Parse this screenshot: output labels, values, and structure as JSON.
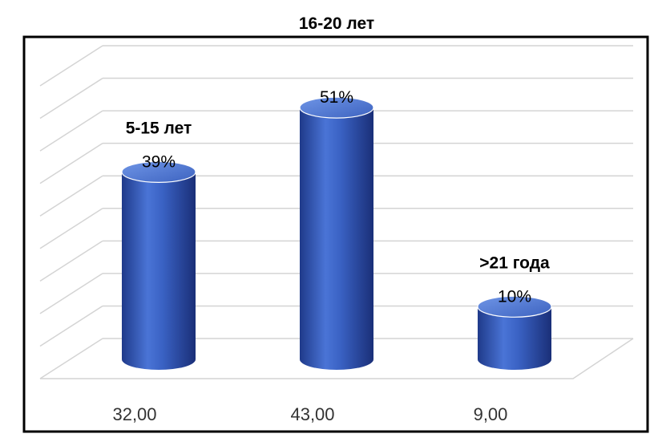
{
  "chart_data": {
    "type": "bar",
    "style": "3d-cylinder",
    "categories": [
      "32,00",
      "43,00",
      "9,00"
    ],
    "values": [
      32,
      43,
      9
    ],
    "data_labels": [
      {
        "name": "5-15 лет",
        "percent": "39%"
      },
      {
        "name": "16-20 лет",
        "percent": "51%"
      },
      {
        "name": ">21 года",
        "percent": "10%"
      }
    ],
    "grid": true,
    "legend": "none",
    "colors": {
      "bar": "#3a62c4",
      "bar_dark": "#1f3a8a",
      "bar_top": "#5f86dc",
      "frame": "#000000",
      "grid": "#d4d4d4"
    }
  }
}
